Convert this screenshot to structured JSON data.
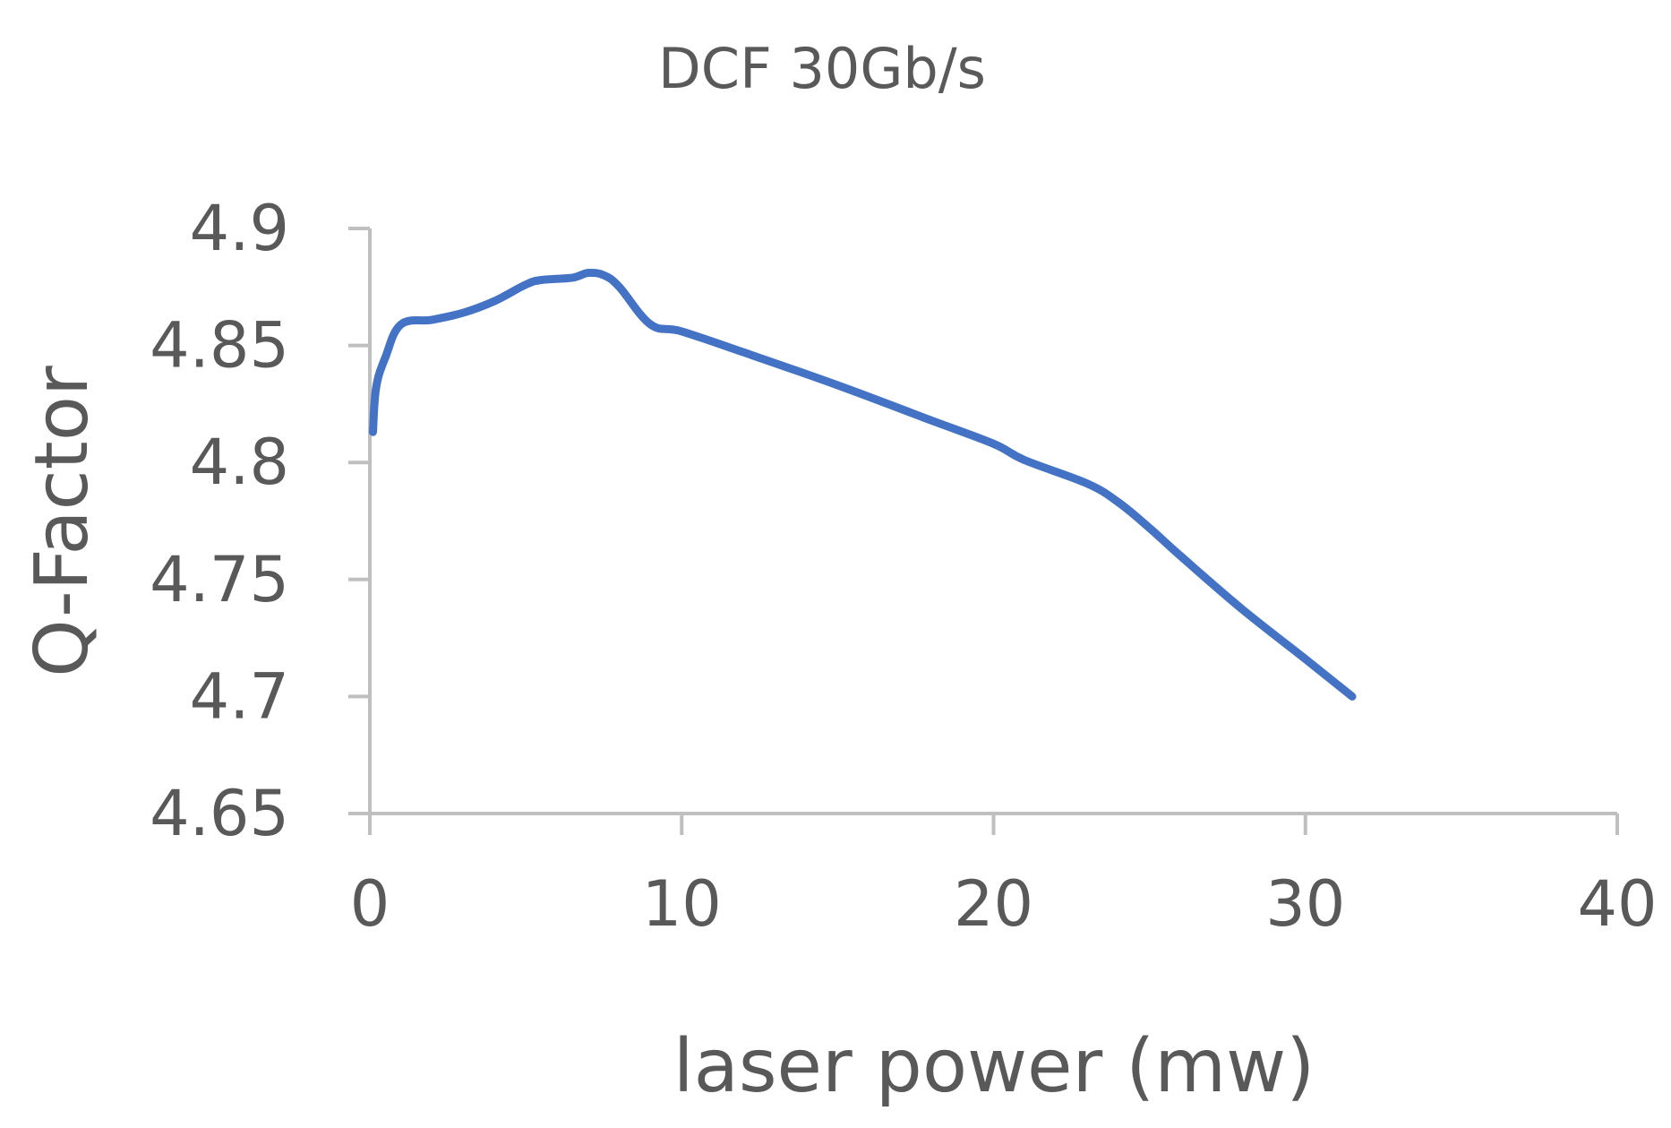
{
  "chart_data": {
    "type": "line",
    "title": "DCF 30Gb/s",
    "xlabel": "laser power (mw)",
    "ylabel": "Q-Factor",
    "xlim": [
      0,
      40
    ],
    "ylim": [
      4.65,
      4.9
    ],
    "x_ticks": [
      "0",
      "10",
      "20",
      "30",
      "40"
    ],
    "y_ticks": [
      "4.9",
      "4.85",
      "4.8",
      "4.75",
      "4.7",
      "4.65"
    ],
    "grid": false,
    "legend": "none",
    "series": [
      {
        "color": "#4472c4",
        "x": [
          0.1,
          0.2,
          0.5,
          1.0,
          2.0,
          3.0,
          4.0,
          5.0,
          5.5,
          6.5,
          7.0,
          7.5,
          8.0,
          9.0,
          10.0,
          12.0,
          15.0,
          18.0,
          20.0,
          21.0,
          23.0,
          24.0,
          25.0,
          26.0,
          28.0,
          30.0,
          31.5
        ],
        "y": [
          4.813,
          4.832,
          4.845,
          4.859,
          4.861,
          4.864,
          4.869,
          4.876,
          4.878,
          4.879,
          4.881,
          4.88,
          4.875,
          4.859,
          4.856,
          4.847,
          4.833,
          4.818,
          4.808,
          4.801,
          4.791,
          4.783,
          4.772,
          4.76,
          4.737,
          4.716,
          4.7
        ]
      }
    ]
  }
}
